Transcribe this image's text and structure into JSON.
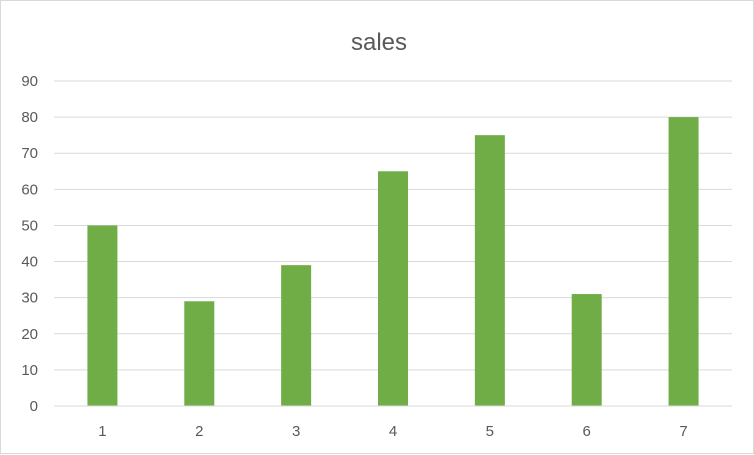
{
  "chart_data": {
    "type": "bar",
    "title": "sales",
    "categories": [
      "1",
      "2",
      "3",
      "4",
      "5",
      "6",
      "7"
    ],
    "series": [
      {
        "values": [
          50,
          29,
          39,
          65,
          75,
          31,
          80
        ],
        "color": "#70ad47"
      }
    ],
    "ylim": [
      0,
      90
    ],
    "yticks": [
      0,
      10,
      20,
      30,
      40,
      50,
      60,
      70,
      80,
      90
    ],
    "grid": true,
    "legend": "none"
  }
}
